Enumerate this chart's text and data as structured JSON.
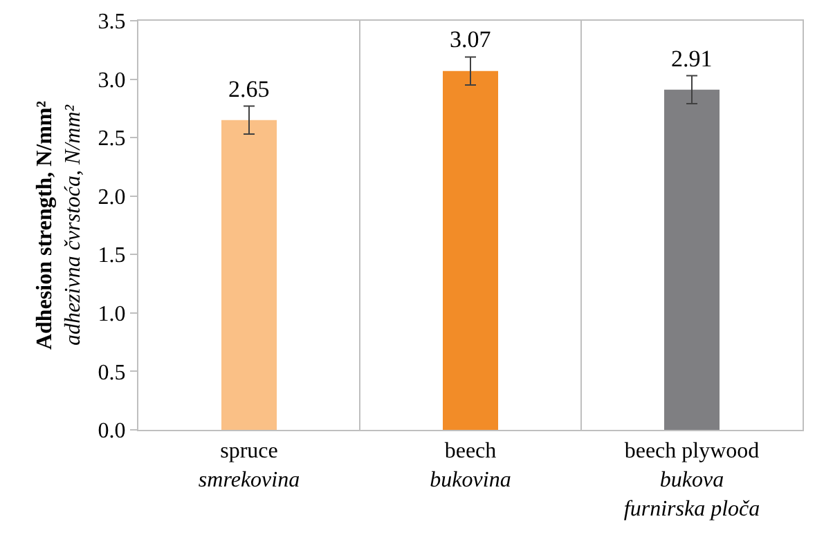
{
  "chart_data": {
    "type": "bar",
    "categories": [
      "spruce\nsmrekovina",
      "beech\nbukovina",
      "beech plywood\nbukova\nfurnirska ploča"
    ],
    "values": [
      2.65,
      3.07,
      2.91
    ],
    "colors": [
      "#fac086",
      "#f28c28",
      "#7f7f82"
    ],
    "errors": [
      0.12,
      0.12,
      0.12
    ],
    "data_labels": true,
    "ylabel": "Adhesion strength, N/mm²\nadhezivna čvrstoća, N/mm²",
    "ylim": [
      0,
      3.5
    ],
    "yticks": [
      {
        "value": 0,
        "label": "0.0"
      },
      {
        "value": 0.5,
        "label": "0.5"
      },
      {
        "value": 1,
        "label": "1.0"
      },
      {
        "value": 1.5,
        "label": "1.5"
      },
      {
        "value": 2,
        "label": "2.0"
      },
      {
        "value": 2.5,
        "label": "2.5"
      },
      {
        "value": 3,
        "label": "3.0"
      },
      {
        "value": 3.5,
        "label": "3.5"
      }
    ],
    "grid": "x"
  }
}
